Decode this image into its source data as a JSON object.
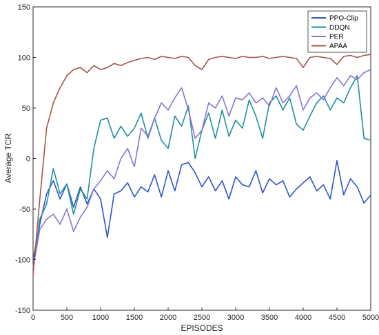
{
  "chart_data": {
    "type": "line",
    "xlabel": "EPISODES",
    "ylabel": "Average TCR",
    "xlim": [
      0,
      5000
    ],
    "ylim": [
      -150,
      150
    ],
    "xticks": [
      "0",
      "500",
      "1000",
      "1500",
      "2000",
      "2500",
      "3000",
      "3500",
      "4000",
      "4500",
      "5000"
    ],
    "yticks": [
      "-150",
      "-100",
      "-50",
      "0",
      "50",
      "100",
      "150"
    ],
    "grid": false,
    "legend_position": "top-right",
    "series": [
      {
        "name": "PPO-Clip",
        "color": "#2b55c8",
        "x": [
          0,
          100,
          200,
          300,
          400,
          500,
          600,
          700,
          800,
          900,
          1000,
          1100,
          1200,
          1300,
          1400,
          1500,
          1600,
          1700,
          1800,
          1900,
          2000,
          2100,
          2200,
          2300,
          2400,
          2500,
          2600,
          2700,
          2800,
          2900,
          3000,
          3100,
          3200,
          3300,
          3400,
          3500,
          3600,
          3700,
          3800,
          3900,
          4000,
          4100,
          4200,
          4300,
          4400,
          4500,
          4600,
          4700,
          4800,
          4900,
          5000
        ],
        "values": [
          -100,
          -65,
          -35,
          -22,
          -40,
          -25,
          -48,
          -28,
          -45,
          -30,
          -40,
          -78,
          -35,
          -32,
          -24,
          -38,
          -28,
          -33,
          -16,
          -38,
          -12,
          -32,
          -6,
          -4,
          -14,
          -28,
          -18,
          -32,
          -22,
          -40,
          -18,
          -26,
          -28,
          -12,
          -34,
          -20,
          -26,
          -22,
          -38,
          -30,
          -24,
          -18,
          -32,
          -26,
          -40,
          -2,
          -36,
          -20,
          -28,
          -44,
          -36
        ]
      },
      {
        "name": "DDQN",
        "color": "#1f8f9c",
        "x": [
          0,
          100,
          200,
          300,
          400,
          500,
          600,
          700,
          800,
          900,
          1000,
          1100,
          1200,
          1300,
          1400,
          1500,
          1600,
          1700,
          1800,
          1900,
          2000,
          2100,
          2200,
          2300,
          2400,
          2500,
          2600,
          2700,
          2800,
          2900,
          3000,
          3100,
          3200,
          3300,
          3400,
          3500,
          3600,
          3700,
          3800,
          3900,
          4000,
          4100,
          4200,
          4300,
          4400,
          4500,
          4600,
          4700,
          4800,
          4900,
          5000
        ],
        "values": [
          -110,
          -60,
          -45,
          -10,
          -35,
          -25,
          -55,
          -30,
          -40,
          10,
          38,
          40,
          20,
          32,
          22,
          30,
          45,
          20,
          40,
          18,
          10,
          42,
          32,
          52,
          0,
          28,
          45,
          20,
          48,
          22,
          38,
          30,
          58,
          42,
          20,
          55,
          62,
          48,
          60,
          34,
          28,
          42,
          55,
          62,
          48,
          60,
          55,
          70,
          82,
          20,
          18
        ]
      },
      {
        "name": "PER",
        "color": "#8b72d6",
        "x": [
          0,
          100,
          200,
          300,
          400,
          500,
          600,
          700,
          800,
          900,
          1000,
          1100,
          1200,
          1300,
          1400,
          1500,
          1600,
          1700,
          1800,
          1900,
          2000,
          2100,
          2200,
          2300,
          2400,
          2500,
          2600,
          2700,
          2800,
          2900,
          3000,
          3100,
          3200,
          3300,
          3400,
          3500,
          3600,
          3700,
          3800,
          3900,
          4000,
          4100,
          4200,
          4300,
          4400,
          4500,
          4600,
          4700,
          4800,
          4900,
          5000
        ],
        "values": [
          -108,
          -70,
          -60,
          -55,
          -65,
          -50,
          -72,
          -58,
          -48,
          -30,
          -22,
          -12,
          -20,
          0,
          10,
          -8,
          30,
          22,
          40,
          55,
          48,
          60,
          70,
          48,
          20,
          28,
          55,
          50,
          62,
          42,
          60,
          58,
          65,
          55,
          60,
          52,
          70,
          55,
          62,
          72,
          48,
          60,
          65,
          58,
          70,
          80,
          72,
          82,
          78,
          85,
          88
        ]
      },
      {
        "name": "APAA",
        "color": "#a8514a",
        "x": [
          0,
          100,
          200,
          300,
          400,
          500,
          600,
          700,
          800,
          900,
          1000,
          1100,
          1200,
          1300,
          1400,
          1500,
          1600,
          1700,
          1800,
          1900,
          2000,
          2100,
          2200,
          2300,
          2400,
          2500,
          2600,
          2700,
          2800,
          2900,
          3000,
          3100,
          3200,
          3300,
          3400,
          3500,
          3600,
          3700,
          3800,
          3900,
          4000,
          4100,
          4200,
          4300,
          4400,
          4500,
          4600,
          4700,
          4800,
          4900,
          5000
        ],
        "values": [
          -115,
          -40,
          30,
          55,
          70,
          82,
          88,
          90,
          85,
          92,
          88,
          90,
          94,
          92,
          95,
          97,
          99,
          100,
          98,
          101,
          100,
          99,
          101,
          100,
          92,
          88,
          98,
          100,
          101,
          100,
          99,
          101,
          100,
          100,
          101,
          99,
          100,
          101,
          100,
          99,
          90,
          100,
          101,
          100,
          99,
          93,
          101,
          102,
          100,
          102,
          103
        ]
      }
    ]
  }
}
